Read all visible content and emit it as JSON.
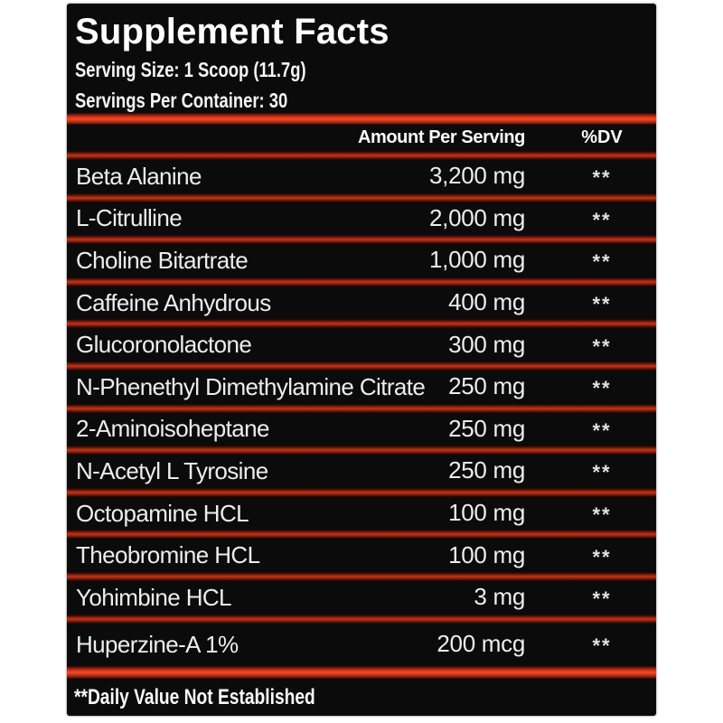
{
  "label": {
    "title": "Supplement Facts",
    "serving_size": "Serving Size: 1 Scoop (11.7g)",
    "servings_per_container": "Servings Per Container: 30",
    "columns": {
      "amount": "Amount Per Serving",
      "dv": "%DV"
    },
    "rows": [
      {
        "name": "Beta Alanine",
        "amount": "3,200 mg",
        "dv": "**"
      },
      {
        "name": "L-Citrulline",
        "amount": "2,000 mg",
        "dv": "**"
      },
      {
        "name": "Choline Bitartrate",
        "amount": "1,000 mg",
        "dv": "**"
      },
      {
        "name": "Caffeine Anhydrous",
        "amount": "400 mg",
        "dv": "**"
      },
      {
        "name": "Glucoronolactone",
        "amount": "300 mg",
        "dv": "**"
      },
      {
        "name": "N-Phenethyl Dimethylamine Citrate",
        "amount": "250 mg",
        "dv": "**"
      },
      {
        "name": "2-Aminoisoheptane",
        "amount": "250 mg",
        "dv": "**"
      },
      {
        "name": "N-Acetyl L Tyrosine",
        "amount": "250 mg",
        "dv": "**"
      },
      {
        "name": "Octopamine HCL",
        "amount": "100 mg",
        "dv": "**"
      },
      {
        "name": "Theobromine HCL",
        "amount": "100 mg",
        "dv": "**"
      },
      {
        "name": "Yohimbine HCL",
        "amount": "3 mg",
        "dv": "**"
      },
      {
        "name": "Huperzine-A 1%",
        "amount": "200 mcg",
        "dv": "**"
      }
    ],
    "footnote": "**Daily Value Not Established",
    "colors": {
      "panel_bg": "#0b0b0b",
      "bar_red": "#e93a1b",
      "row_text": "#ededed"
    }
  }
}
